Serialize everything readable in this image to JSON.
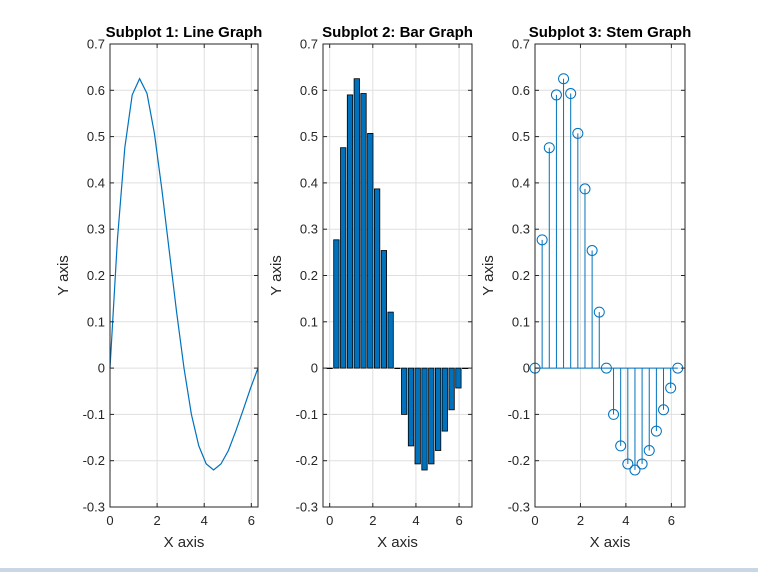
{
  "chart_data": [
    {
      "type": "line",
      "title": "Subplot 1: Line Graph",
      "xlabel": "X axis",
      "ylabel": "Y axis",
      "xlim": [
        0,
        6.2832
      ],
      "ylim": [
        -0.3,
        0.7
      ],
      "xticks": [
        "0",
        "2",
        "4",
        "6"
      ],
      "yticks": [
        "-0.3",
        "-0.2",
        "-0.1",
        "0",
        "0.1",
        "0.2",
        "0.3",
        "0.4",
        "0.5",
        "0.6",
        "0.7"
      ],
      "grid": true,
      "color": "#0072BD",
      "x": [
        0,
        0.3142,
        0.6283,
        0.9425,
        1.2566,
        1.5708,
        1.885,
        2.1991,
        2.5133,
        2.8274,
        3.1416,
        3.4558,
        3.7699,
        4.0841,
        4.3982,
        4.7124,
        5.0265,
        5.3407,
        5.6549,
        5.969,
        6.2832
      ],
      "y": [
        0,
        0.277,
        0.476,
        0.59,
        0.625,
        0.593,
        0.507,
        0.387,
        0.254,
        0.121,
        0,
        -0.1,
        -0.168,
        -0.207,
        -0.22,
        -0.207,
        -0.178,
        -0.136,
        -0.09,
        -0.043,
        0
      ]
    },
    {
      "type": "bar",
      "title": "Subplot 2: Bar Graph",
      "xlabel": "X axis",
      "ylabel": "Y axis",
      "xlim": [
        -0.31,
        6.6
      ],
      "ylim": [
        -0.3,
        0.7
      ],
      "xticks": [
        "0",
        "2",
        "4",
        "6"
      ],
      "yticks": [
        "-0.3",
        "-0.2",
        "-0.1",
        "0",
        "0.1",
        "0.2",
        "0.3",
        "0.4",
        "0.5",
        "0.6",
        "0.7"
      ],
      "grid": true,
      "color": "#0072BD",
      "x": [
        0,
        0.3142,
        0.6283,
        0.9425,
        1.2566,
        1.5708,
        1.885,
        2.1991,
        2.5133,
        2.8274,
        3.1416,
        3.4558,
        3.7699,
        4.0841,
        4.3982,
        4.7124,
        5.0265,
        5.3407,
        5.6549,
        5.969,
        6.2832
      ],
      "values": [
        0,
        0.277,
        0.476,
        0.59,
        0.625,
        0.593,
        0.507,
        0.387,
        0.254,
        0.121,
        0,
        -0.1,
        -0.168,
        -0.207,
        -0.22,
        -0.207,
        -0.178,
        -0.136,
        -0.09,
        -0.043,
        0
      ]
    },
    {
      "type": "stem",
      "title": "Subplot 3: Stem Graph",
      "xlabel": "X axis",
      "ylabel": "Y axis",
      "xlim": [
        0,
        6.6
      ],
      "ylim": [
        -0.3,
        0.7
      ],
      "xticks": [
        "0",
        "2",
        "4",
        "6"
      ],
      "yticks": [
        "-0.3",
        "-0.2",
        "-0.1",
        "0",
        "0.1",
        "0.2",
        "0.3",
        "0.4",
        "0.5",
        "0.6",
        "0.7"
      ],
      "grid": true,
      "color": "#0072BD",
      "x": [
        0,
        0.3142,
        0.6283,
        0.9425,
        1.2566,
        1.5708,
        1.885,
        2.1991,
        2.5133,
        2.8274,
        3.1416,
        3.4558,
        3.7699,
        4.0841,
        4.3982,
        4.7124,
        5.0265,
        5.3407,
        5.6549,
        5.969,
        6.2832
      ],
      "y": [
        0,
        0.277,
        0.476,
        0.59,
        0.625,
        0.593,
        0.507,
        0.387,
        0.254,
        0.121,
        0,
        -0.1,
        -0.168,
        -0.207,
        -0.22,
        -0.207,
        -0.178,
        -0.136,
        -0.09,
        -0.043,
        0
      ]
    }
  ]
}
